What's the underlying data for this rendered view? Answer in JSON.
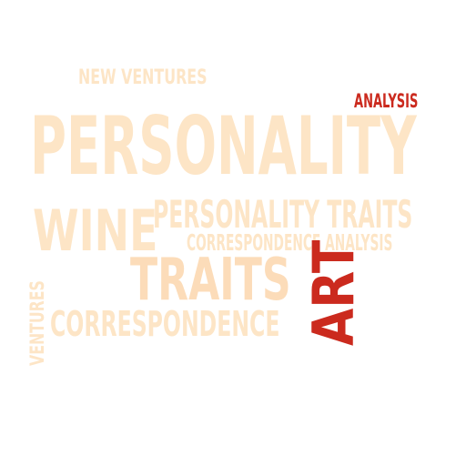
{
  "words": {
    "new_ventures": "NEW VENTURES",
    "analysis": "ANALYSIS",
    "personality": "PERSONALITY",
    "wine": "WINE",
    "personality_traits": "PERSONALITY TRAITS",
    "correspondence_analysis": "CORRESPONDENCE ANALYSIS",
    "traits": "TRAITS",
    "art": "ART",
    "ventures": "VENTURES",
    "correspondence": "CORRESPONDENCE"
  },
  "colors": {
    "light": "#fde5c6",
    "mid": "#fcdcb9",
    "accent": "#cb2a1e"
  }
}
